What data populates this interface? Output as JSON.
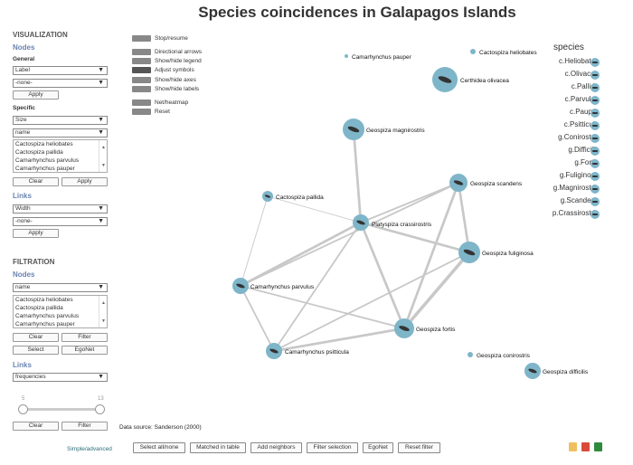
{
  "title": "Species coincidences in Galapagos Islands",
  "sidebar": {
    "visualization": "VISUALIZATION",
    "nodes": "Nodes",
    "general": "General",
    "general_select1": "Label",
    "general_select2": "-none-",
    "apply": "Apply",
    "specific": "Specific",
    "specific_select1": "Size",
    "specific_select2": "name",
    "species_list": [
      "Cactospiza heliobates",
      "Cactospiza pallida",
      "Camarhynchus parvulus",
      "Camarhynchus pauper"
    ],
    "clear": "Clear",
    "links": "Links",
    "links_select1": "Width",
    "links_select2": "-none-",
    "filtration": "FILTRATION",
    "filt_nodes_select": "name",
    "filter": "Filter",
    "select": "Select",
    "egonet": "EgoNet",
    "filt_links_select": "frequencies",
    "slider_min": "5",
    "slider_max": "13",
    "simple_advanced": "Simple/advanced"
  },
  "toolbar": {
    "stop_resume": "Stop/resume",
    "directional_arrows": "Directional arrows",
    "show_hide_legend": "Show/hide legend",
    "adjust_symbols": "Adjust symbols",
    "show_hide_axes": "Show/hide axes",
    "show_hide_labels": "Show/hide labels",
    "net_heatmap": "Net/heatmap",
    "reset": "Reset"
  },
  "network": {
    "nodes": [
      {
        "id": "cpauper",
        "label": "Camarhynchus pauper"
      },
      {
        "id": "chelio",
        "label": "Cactospiza heliobates"
      },
      {
        "id": "colivacea",
        "label": "Certhidea olivacea"
      },
      {
        "id": "gmagni",
        "label": "Geospiza magnirostris"
      },
      {
        "id": "cpallida",
        "label": "Cactospiza pallida"
      },
      {
        "id": "gscand",
        "label": "Geospiza scandens"
      },
      {
        "id": "pcrass",
        "label": "Platyspiza crassirostris"
      },
      {
        "id": "gfulig",
        "label": "Geospiza fuliginosa"
      },
      {
        "id": "cparv",
        "label": "Camarhynchus parvulus"
      },
      {
        "id": "gfortis",
        "label": "Geospiza fortis"
      },
      {
        "id": "cpsitt",
        "label": "Camarhynchus psitticula"
      },
      {
        "id": "gconi",
        "label": "Geospiza conirostris"
      },
      {
        "id": "gdiff",
        "label": "Geospiza difficilis"
      }
    ],
    "edges": [
      {
        "source": "gmagni",
        "target": "pcrass",
        "weight": 3
      },
      {
        "source": "cpallida",
        "target": "pcrass",
        "weight": 1
      },
      {
        "source": "cpallida",
        "target": "cparv",
        "weight": 1
      },
      {
        "source": "pcrass",
        "target": "gscand",
        "weight": 2
      },
      {
        "source": "pcrass",
        "target": "gfulig",
        "weight": 3
      },
      {
        "source": "pcrass",
        "target": "cparv",
        "weight": 3
      },
      {
        "source": "pcrass",
        "target": "gfortis",
        "weight": 3
      },
      {
        "source": "pcrass",
        "target": "cpsitt",
        "weight": 2
      },
      {
        "source": "gscand",
        "target": "gfulig",
        "weight": 3
      },
      {
        "source": "gscand",
        "target": "cparv",
        "weight": 2
      },
      {
        "source": "gscand",
        "target": "gfortis",
        "weight": 3
      },
      {
        "source": "gfulig",
        "target": "gfortis",
        "weight": 4
      },
      {
        "source": "gfulig",
        "target": "cpsitt",
        "weight": 2
      },
      {
        "source": "cparv",
        "target": "gfortis",
        "weight": 2
      },
      {
        "source": "cparv",
        "target": "cpsitt",
        "weight": 2
      },
      {
        "source": "cpsitt",
        "target": "gfortis",
        "weight": 3
      }
    ]
  },
  "legend": {
    "title": "species",
    "items": [
      "c.Heliobates",
      "c.Olivacea",
      "c.Pallida",
      "c.Parvulus",
      "c.Pauper",
      "c.Psitticula",
      "g.Conirostris",
      "g.Difficilis",
      "g.Fortis",
      "g.Fuliginosa",
      "g.Magnirostris",
      "g.Scandens",
      "p.Crassirostris"
    ]
  },
  "data_source": "Data source: Sanderson (2000)",
  "bottom": {
    "select_all_none": "Select all/none",
    "matched_in_table": "Matched in table",
    "add_neighbors": "Add neighbors",
    "filter_selection": "Filter selection",
    "egonet": "EgoNet",
    "reset_filter": "Reset filter"
  },
  "colors": {
    "node_fill": "#7eb5c9",
    "edge": "#c8c8c8"
  }
}
